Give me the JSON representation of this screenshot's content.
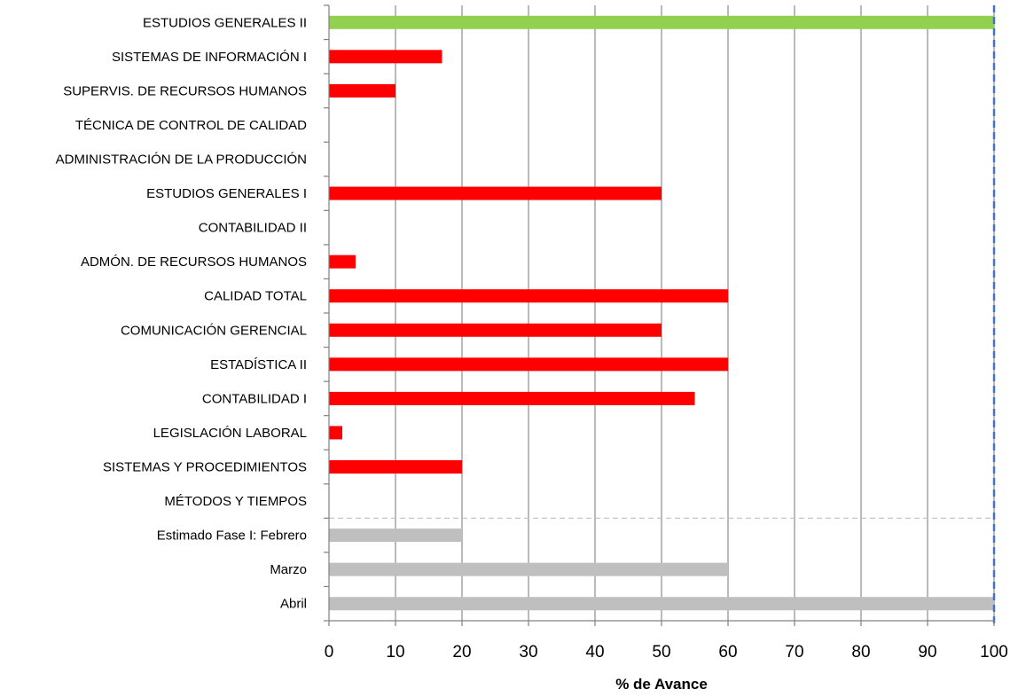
{
  "chart_data": {
    "type": "bar",
    "orientation": "horizontal",
    "title": "",
    "xlabel": "% de Avance",
    "ylabel": "",
    "xlim": [
      0,
      100
    ],
    "xticks": [
      0,
      10,
      20,
      30,
      40,
      50,
      60,
      70,
      80,
      90,
      100
    ],
    "grid": "vertical",
    "reference_line": 100,
    "categories": [
      "ESTUDIOS GENERALES II",
      "SISTEMAS DE INFORMACIÓN I",
      "SUPERVIS. DE  RECURSOS HUMANOS",
      "TÉCNICA DE CONTROL DE CALIDAD",
      "ADMINISTRACIÓN DE LA PRODUCCIÓN",
      "ESTUDIOS GENERALES I",
      "CONTABILIDAD II",
      "ADMÓN. DE RECURSOS HUMANOS",
      "CALIDAD TOTAL",
      "COMUNICACIÓN GERENCIAL",
      "ESTADÍSTICA II",
      "CONTABILIDAD I",
      "LEGISLACIÓN LABORAL",
      "SISTEMAS Y PROCEDIMIENTOS",
      "MÉTODOS Y TIEMPOS",
      "Estimado Fase I:  Febrero",
      "Marzo",
      "Abril"
    ],
    "values": [
      100,
      17,
      10,
      0,
      0,
      50,
      0,
      4,
      60,
      50,
      60,
      55,
      2,
      20,
      0,
      20,
      60,
      100
    ],
    "colors": [
      "#92d050",
      "#ff0000",
      "#ff0000",
      "#ff0000",
      "#ff0000",
      "#ff0000",
      "#ff0000",
      "#ff0000",
      "#ff0000",
      "#ff0000",
      "#ff0000",
      "#ff0000",
      "#ff0000",
      "#ff0000",
      "#ff0000",
      "#bfbfbf",
      "#bfbfbf",
      "#bfbfbf"
    ]
  }
}
